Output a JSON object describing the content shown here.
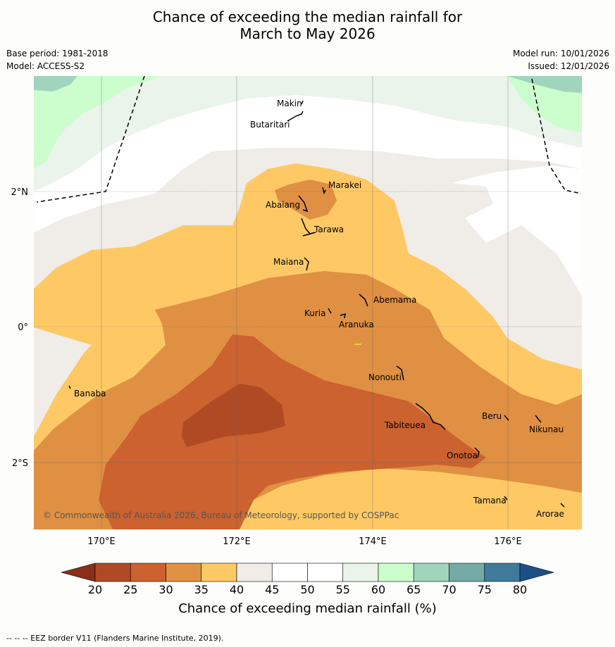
{
  "title_line1": "Chance of exceeding the median rainfall for",
  "title_line2": "March to May 2026",
  "base_period": "Base period: 1981-2018",
  "model": "Model: ACCESS-S2",
  "model_run": "Model run: 10/01/2026",
  "issued": "Issued: 12/01/2026",
  "copyright": "© Commonwealth of Australia 2026, Bureau of Meteorology, supported by COSPPac",
  "x_axis_ticks": [
    "170°E",
    "172°E",
    "174°E",
    "176°E"
  ],
  "y_axis_ticks": [
    "2°N",
    "0°",
    "2°S"
  ],
  "places": [
    {
      "name": "Makin"
    },
    {
      "name": "Butaritari"
    },
    {
      "name": "Marakei"
    },
    {
      "name": "Abaiang"
    },
    {
      "name": "Tarawa"
    },
    {
      "name": "Maiana"
    },
    {
      "name": "Abemama"
    },
    {
      "name": "Kuria"
    },
    {
      "name": "Aranuka"
    },
    {
      "name": "Nonouti"
    },
    {
      "name": "Banaba"
    },
    {
      "name": "Beru"
    },
    {
      "name": "Tabiteuea"
    },
    {
      "name": "Nikunau"
    },
    {
      "name": "Onotoa"
    },
    {
      "name": "Tamana"
    },
    {
      "name": "Arorae"
    }
  ],
  "colorbar": {
    "ticks": [
      "20",
      "25",
      "30",
      "35",
      "40",
      "45",
      "50",
      "55",
      "60",
      "65",
      "70",
      "75",
      "80"
    ],
    "colors": [
      "#b04a25",
      "#cb622f",
      "#e09042",
      "#fec965",
      "#f0ece8",
      "#ffffff",
      "#ffffff",
      "#eaf4ea",
      "#ccfdcc",
      "#a0d4bc",
      "#74aaa6",
      "#3f7a9b"
    ],
    "low_extend_color": "#8a2f18",
    "high_extend_color": "#1d4f87",
    "label": "Chance of exceeding median rainfall (%)"
  },
  "footnote": "-- -- -- EEZ border V11 (Flanders Marine Institute, 2019)."
}
